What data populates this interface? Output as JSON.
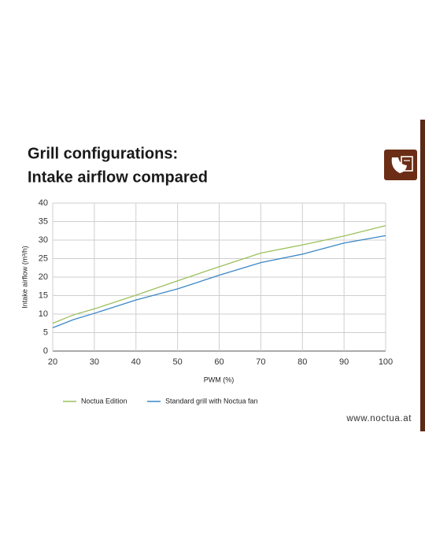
{
  "chart_data": {
    "type": "line",
    "title": [
      "Grill configurations:",
      "Intake airflow compared"
    ],
    "x_label": "PWM (%)",
    "y_label": "Intake airflow (m³/h)",
    "x": [
      20,
      25,
      30,
      40,
      50,
      60,
      70,
      80,
      90,
      100
    ],
    "series": [
      {
        "name": "Noctua Edition",
        "color": "#9cc05c",
        "values": [
          7.5,
          9.8,
          11.4,
          15.1,
          19,
          22.8,
          26.5,
          28.7,
          31.1,
          33.9
        ]
      },
      {
        "name": "Standard grill with Noctua fan",
        "color": "#3a87c6",
        "values": [
          6.3,
          8.5,
          10.2,
          13.8,
          16.8,
          20.5,
          23.9,
          26.2,
          29.2,
          31.2
        ]
      }
    ],
    "xlim": [
      20,
      100
    ],
    "xticks": [
      20,
      30,
      40,
      50,
      60,
      70,
      80,
      90,
      100
    ],
    "ylim": [
      0,
      40
    ],
    "yticks": [
      0,
      5,
      10,
      15,
      20,
      25,
      30,
      35,
      40
    ],
    "grid": true
  },
  "footer": "www.noctua.at"
}
